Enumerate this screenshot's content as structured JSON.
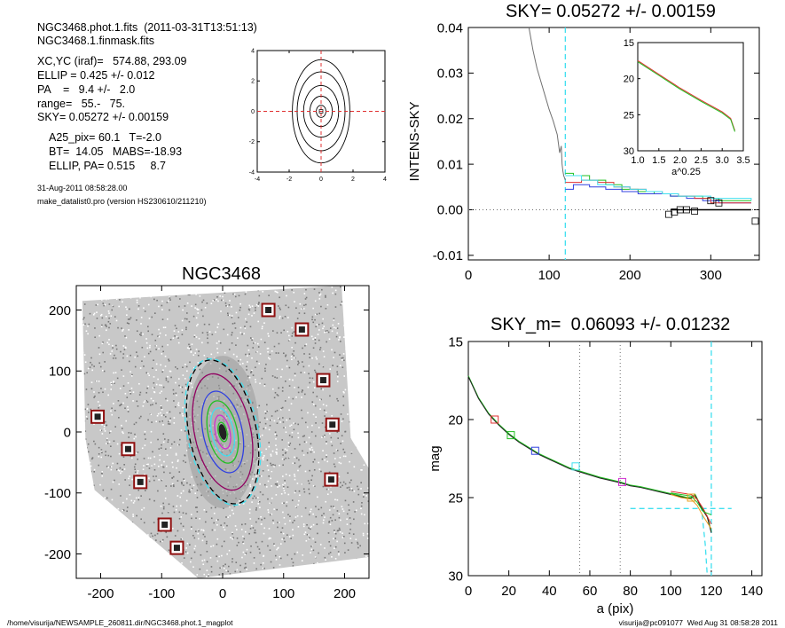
{
  "header": {
    "info_lines_a": [
      "NGC3468.phot.1.fits  (2011-03-31T13:51:13)",
      "NGC3468.1.finmask.fits"
    ],
    "info_lines_b": [
      "XC,YC (iraf)=   574.88, 293.09",
      "ELLIP = 0.425 +/- 0.012",
      "PA    =   9.4 +/-   2.0",
      "range=   55.-   75.",
      "SKY= 0.05272 +/- 0.00159"
    ],
    "info_lines_c": [
      "A25_pix= 60.1   T=-2.0",
      "BT=  14.05   MABS=-18.93",
      "ELLIP, PA= 0.515     8.7"
    ],
    "date_line": "31-Aug-2011 08:58:28.00",
    "program_line": "make_datalist0.pro (version HS230610/211210)"
  },
  "footer": {
    "left": "/home/visurija/NEWSAMPLE_260811.dir/NGC3468.phot.1_magplot",
    "right": "visurija@pc091077  Wed Aug 31 08:58:28 2011"
  },
  "colors": {
    "black": "#000000",
    "red": "#e03030",
    "green": "#20c020",
    "blue": "#3040e0",
    "cyan": "#40e0f0",
    "magenta": "#d030d0",
    "orange": "#e8a020",
    "purple": "#900060",
    "dark_red": "#901010",
    "gray": "#707070",
    "yellow_green": "#b0c040"
  },
  "chart_data": [
    {
      "id": "contour",
      "type": "contour",
      "title": "",
      "xlim": [
        -4,
        4
      ],
      "ylim": [
        -4,
        4
      ],
      "xticks": [
        "-4",
        "-2",
        "0",
        "2",
        "4"
      ],
      "yticks": [
        "-4",
        "-2",
        "0",
        "2",
        "4"
      ],
      "contours": [
        {
          "a": 1.8,
          "b": 3.4
        },
        {
          "a": 1.5,
          "b": 2.6
        },
        {
          "a": 1.1,
          "b": 1.7
        },
        {
          "a": 0.7,
          "b": 1.0
        },
        {
          "a": 0.3,
          "b": 0.4
        }
      ],
      "center": [
        0,
        0
      ]
    },
    {
      "id": "sky",
      "type": "line",
      "title": "SKY= 0.05272 +/- 0.00159",
      "xlabel": "",
      "ylabel": "INTENS-SKY",
      "xlim": [
        0,
        360
      ],
      "ylim": [
        -0.011,
        0.04
      ],
      "xticks": [
        "0",
        "100",
        "200",
        "300"
      ],
      "yticks": [
        "0.04",
        "0.03",
        "0.02",
        "0.01",
        "0.00",
        "-0.01"
      ],
      "vline_x": 120,
      "main_curve": {
        "x": [
          75,
          80,
          85,
          90,
          95,
          100,
          105,
          110,
          113,
          115,
          116,
          117,
          118,
          120
        ],
        "y": [
          0.04,
          0.035,
          0.031,
          0.028,
          0.025,
          0.022,
          0.0195,
          0.0165,
          0.0125,
          0.014,
          0.01,
          0.0085,
          0.0075,
          0.0065
        ]
      },
      "step_series": [
        {
          "color": "green",
          "x": [
            120,
            130,
            150,
            170,
            190,
            210,
            230,
            250,
            270,
            290,
            310,
            350
          ],
          "y": [
            0.008,
            0.0075,
            0.0065,
            0.0055,
            0.0045,
            0.004,
            0.0035,
            0.003,
            0.003,
            0.0025,
            0.002,
            0.002
          ]
        },
        {
          "color": "blue",
          "x": [
            120,
            130,
            150,
            170,
            190,
            210,
            230,
            250,
            270,
            290,
            310,
            350
          ],
          "y": [
            0.0045,
            0.0055,
            0.005,
            0.0045,
            0.004,
            0.0035,
            0.0035,
            0.003,
            0.0025,
            0.002,
            0.0015,
            0.0015
          ]
        },
        {
          "color": "red",
          "x": [
            120,
            140,
            160,
            180,
            200,
            220,
            240,
            260,
            280,
            300,
            350
          ],
          "y": [
            0.006,
            0.0065,
            0.006,
            0.005,
            0.0045,
            0.004,
            0.0035,
            0.003,
            0.0025,
            0.0015,
            0.0015
          ]
        },
        {
          "color": "cyan",
          "x": [
            120,
            140,
            160,
            180,
            200,
            220,
            240,
            260,
            280,
            300,
            350
          ],
          "y": [
            0.0075,
            0.0065,
            0.0055,
            0.005,
            0.0045,
            0.004,
            0.0035,
            0.003,
            0.003,
            0.0025,
            0.002
          ]
        }
      ],
      "squares": [
        [
          248,
          -0.001
        ],
        [
          255,
          -0.0005
        ],
        [
          262,
          0
        ],
        [
          270,
          0
        ],
        [
          280,
          -0.0003
        ],
        [
          300,
          0.002
        ],
        [
          310,
          0.0015
        ],
        [
          355,
          -0.0025
        ]
      ],
      "zero_line": {
        "x0": 250,
        "x1": 350,
        "y": 0
      },
      "inset": {
        "xlabel": "a^0.25",
        "xlim": [
          1.0,
          3.5
        ],
        "ylim": [
          15,
          30
        ],
        "xticks": [
          "1.0",
          "1.5",
          "2.0",
          "2.5",
          "3.0",
          "3.5"
        ],
        "yticks": [
          "15",
          "20",
          "25",
          "30"
        ],
        "x": [
          1.0,
          1.5,
          2.0,
          2.5,
          3.0,
          3.2,
          3.3
        ],
        "y": [
          17.5,
          19.4,
          21.3,
          23.0,
          24.6,
          25.5,
          27.2
        ]
      }
    },
    {
      "id": "image",
      "type": "scatter",
      "title": "NGC3468",
      "xlim": [
        -240,
        240
      ],
      "ylim": [
        -240,
        240
      ],
      "xticks": [
        "-200",
        "-100",
        "0",
        "100",
        "200"
      ],
      "yticks": [
        "200",
        "100",
        "0",
        "-100",
        "-200"
      ],
      "markers": [
        [
          75,
          200
        ],
        [
          130,
          168
        ],
        [
          165,
          85
        ],
        [
          -205,
          25
        ],
        [
          -155,
          -28
        ],
        [
          -135,
          -82
        ],
        [
          180,
          12
        ],
        [
          178,
          -78
        ],
        [
          -95,
          -152
        ],
        [
          -75,
          -190
        ]
      ],
      "ellipses": [
        {
          "a": 55,
          "b": 120,
          "color": "black",
          "dash": true
        },
        {
          "a": 58,
          "b": 122,
          "color": "cyan",
          "dash": true
        },
        {
          "a": 46,
          "b": 97,
          "color": "purple"
        },
        {
          "a": 32,
          "b": 68,
          "color": "blue"
        },
        {
          "a": 24,
          "b": 52,
          "color": "green"
        },
        {
          "a": 18,
          "b": 40,
          "color": "cyan"
        },
        {
          "a": 12,
          "b": 28,
          "color": "magenta"
        },
        {
          "a": 7,
          "b": 16,
          "color": "green"
        }
      ]
    },
    {
      "id": "magprofile",
      "type": "line",
      "title": "SKY_m=  0.06093 +/- 0.01232",
      "xlabel": "a (pix)",
      "ylabel": "mag",
      "xlim": [
        0,
        145
      ],
      "ylim": [
        15,
        30
      ],
      "xticks": [
        "0",
        "20",
        "40",
        "60",
        "80",
        "100",
        "120",
        "140"
      ],
      "yticks": [
        "15",
        "20",
        "25",
        "30"
      ],
      "vlines_dotted": [
        55,
        75
      ],
      "vline_dashed": 120,
      "main_curve": {
        "x": [
          0,
          5,
          10,
          15,
          20,
          25,
          30,
          35,
          40,
          45,
          50,
          55,
          60,
          65,
          70,
          75,
          80,
          85,
          90,
          95,
          100,
          105,
          108,
          110,
          112,
          115,
          118,
          120
        ],
        "y": [
          17.2,
          18.6,
          19.6,
          20.3,
          20.9,
          21.4,
          21.8,
          22.2,
          22.5,
          22.8,
          23.1,
          23.3,
          23.5,
          23.7,
          23.85,
          24.0,
          24.2,
          24.3,
          24.45,
          24.6,
          24.75,
          24.9,
          25.0,
          25.0,
          24.8,
          25.6,
          26.2,
          27.2
        ]
      },
      "fan_series": [
        {
          "color": "red",
          "x": [
            100,
            105,
            110,
            113,
            116,
            120
          ],
          "y": [
            24.6,
            24.7,
            24.8,
            25.1,
            25.7,
            26.7
          ]
        },
        {
          "color": "green",
          "x": [
            100,
            105,
            110,
            113,
            116,
            120
          ],
          "y": [
            24.7,
            24.8,
            24.9,
            25.3,
            25.9,
            26.1
          ]
        },
        {
          "color": "orange",
          "x": [
            100,
            105,
            110,
            113,
            116,
            120
          ],
          "y": [
            24.8,
            25.0,
            25.1,
            25.5,
            26.2,
            27.0
          ]
        }
      ],
      "squares": [
        {
          "x": 13,
          "y": 20,
          "color": "red"
        },
        {
          "x": 21,
          "y": 21,
          "color": "green"
        },
        {
          "x": 33,
          "y": 22,
          "color": "blue"
        },
        {
          "x": 53,
          "y": 23,
          "color": "cyan"
        },
        {
          "x": 76,
          "y": 24,
          "color": "magenta"
        },
        {
          "x": 110,
          "y": 25,
          "color": "orange"
        }
      ],
      "sky_level": {
        "x0": 80,
        "x1": 130,
        "y": 25.7
      },
      "cyan_drop": {
        "x": [
          115,
          117,
          118
        ],
        "y": [
          25.5,
          28,
          30
        ]
      }
    }
  ]
}
